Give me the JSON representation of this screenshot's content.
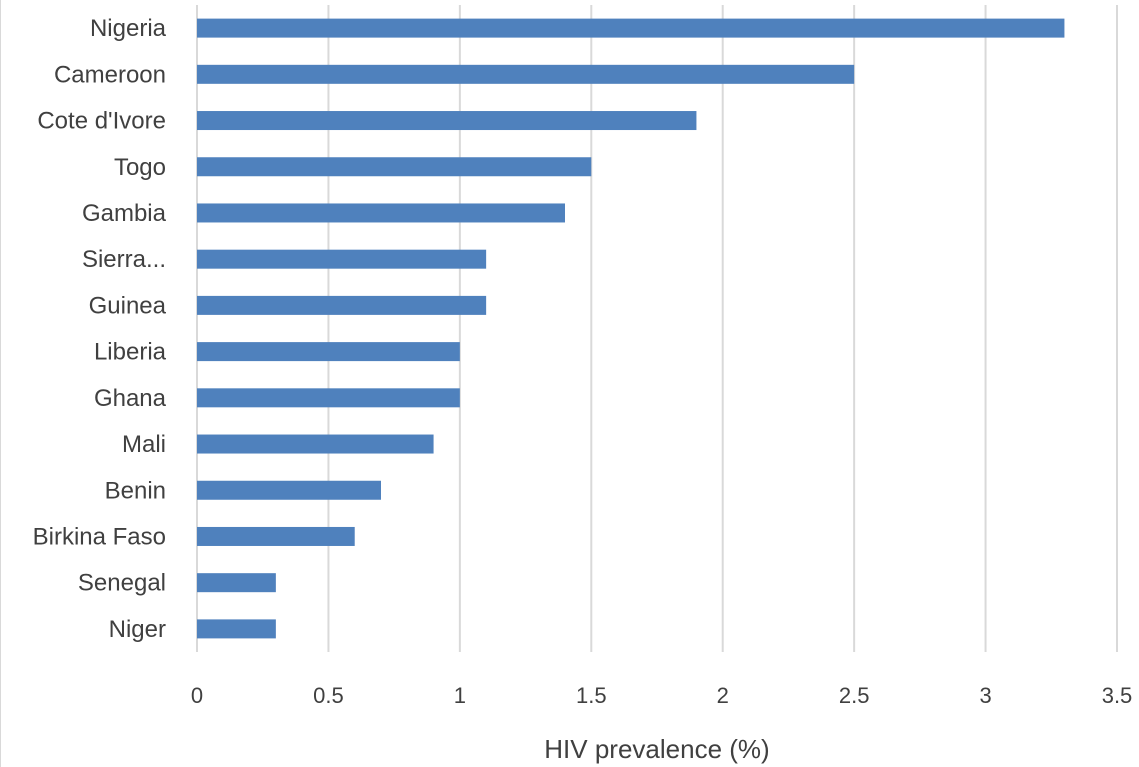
{
  "chart_data": {
    "type": "bar",
    "orientation": "horizontal",
    "categories": [
      "Nigeria",
      "Cameroon",
      "Cote d'Ivore",
      "Togo",
      "Gambia",
      "Sierra...",
      "Guinea",
      "Liberia",
      "Ghana",
      "Mali",
      "Benin",
      "Birkina Faso",
      "Senegal",
      "Niger"
    ],
    "values": [
      3.3,
      2.5,
      1.9,
      1.5,
      1.4,
      1.1,
      1.1,
      1.0,
      1.0,
      0.9,
      0.7,
      0.6,
      0.3,
      0.3
    ],
    "xlabel": "HIV prevalence (%)",
    "ylabel": "",
    "xlim": [
      0,
      3.5
    ],
    "xticks": [
      0,
      0.5,
      1,
      1.5,
      2,
      2.5,
      3,
      3.5
    ],
    "xtick_labels": [
      "0",
      "0.5",
      "1",
      "1.5",
      "2",
      "2.5",
      "3",
      "3.5"
    ],
    "grid": "vertical",
    "bar_color": "#4f81bd",
    "grid_color": "#d9d9d9"
  }
}
